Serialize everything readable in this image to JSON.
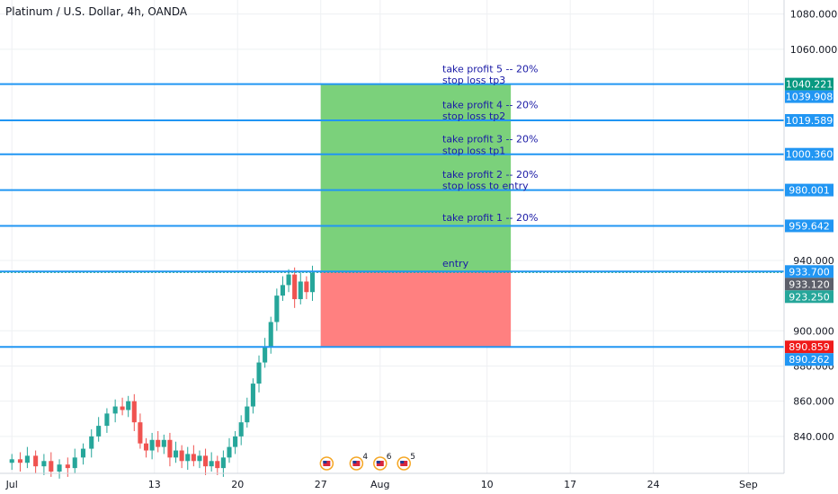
{
  "header": {
    "title": "Platinum / U.S. Dollar, 4h, OANDA"
  },
  "colors": {
    "up": "#26a69a",
    "down": "#ef5350",
    "level_line": "#2196f3",
    "profit_zone": "#7bd17b",
    "loss_zone": "#ff8080",
    "note_text": "#1a1aa6",
    "grid": "#eef0f3",
    "axis_text": "#131722"
  },
  "chart_data": {
    "type": "candlestick",
    "symbol": "Platinum / U.S. Dollar",
    "interval": "4h",
    "source": "OANDA",
    "ylim": [
      819,
      1088
    ],
    "y_ticks": [
      840,
      860,
      880,
      900,
      940,
      1060,
      1080
    ],
    "y_tick_labels": [
      "840.000",
      "860.000",
      "880.000",
      "900.000",
      "940.000",
      "1060.000",
      "1080.000"
    ],
    "x_ticks": [
      "Jul",
      "13",
      "20",
      "27",
      "Aug",
      "10",
      "17",
      "24",
      "Sep"
    ],
    "x_tick_days": [
      1,
      13,
      20,
      27,
      32,
      41,
      48,
      55,
      63
    ],
    "xlim_days": [
      0,
      66
    ],
    "close_series": [
      [
        1.0,
        827
      ],
      [
        1.7,
        825
      ],
      [
        2.3,
        829
      ],
      [
        3.0,
        823
      ],
      [
        3.7,
        826
      ],
      [
        4.3,
        820
      ],
      [
        5.0,
        824
      ],
      [
        5.7,
        822
      ],
      [
        6.3,
        828
      ],
      [
        7.0,
        833
      ],
      [
        7.7,
        840
      ],
      [
        8.3,
        846
      ],
      [
        9.0,
        853
      ],
      [
        9.7,
        857
      ],
      [
        10.3,
        855
      ],
      [
        10.8,
        860
      ],
      [
        11.3,
        848
      ],
      [
        11.8,
        836
      ],
      [
        12.3,
        832
      ],
      [
        12.8,
        838
      ],
      [
        13.3,
        834
      ],
      [
        13.8,
        838
      ],
      [
        14.3,
        828
      ],
      [
        14.8,
        832
      ],
      [
        15.3,
        826
      ],
      [
        15.8,
        830
      ],
      [
        16.3,
        826
      ],
      [
        16.8,
        829
      ],
      [
        17.3,
        823
      ],
      [
        17.8,
        826
      ],
      [
        18.3,
        822
      ],
      [
        18.8,
        828
      ],
      [
        19.3,
        834
      ],
      [
        19.8,
        840
      ],
      [
        20.3,
        848
      ],
      [
        20.8,
        857
      ],
      [
        21.3,
        870
      ],
      [
        21.8,
        882
      ],
      [
        22.3,
        891
      ],
      [
        22.8,
        905
      ],
      [
        23.3,
        920
      ],
      [
        23.8,
        926
      ],
      [
        24.3,
        932
      ],
      [
        24.8,
        918
      ],
      [
        25.3,
        928
      ],
      [
        25.8,
        922
      ],
      [
        26.3,
        933
      ]
    ],
    "levels": [
      {
        "name": "take-profit-5",
        "value": 1040.221,
        "label": "1040.221",
        "tag_color": "#089981"
      },
      {
        "name": "stop-loss-tp3",
        "value": 1039.908,
        "label": "1039.908",
        "tag_color": "#2196f3"
      },
      {
        "name": "take-profit-4",
        "value": 1019.589,
        "label": "1019.589",
        "tag_color": "#2196f3"
      },
      {
        "name": "take-profit-3",
        "value": 1000.36,
        "label": "1000.360",
        "tag_color": "#2196f3"
      },
      {
        "name": "take-profit-2",
        "value": 980.001,
        "label": "980.001",
        "tag_color": "#2196f3"
      },
      {
        "name": "take-profit-1",
        "value": 959.642,
        "label": "959.642",
        "tag_color": "#2196f3"
      },
      {
        "name": "entry",
        "value": 933.7,
        "label": "933.700",
        "tag_color": "#2196f3"
      },
      {
        "name": "current-price",
        "value": 933.12,
        "label": "933.120",
        "tag_color": "#5d606b"
      },
      {
        "name": "bid",
        "value": 923.25,
        "label": "923.250",
        "tag_color": "#26a69a"
      },
      {
        "name": "stop-loss",
        "value": 890.859,
        "label": "890.859",
        "tag_color": "#ef1a1a"
      },
      {
        "name": "stop",
        "value": 890.262,
        "label": "890.262",
        "tag_color": "#2196f3"
      }
    ],
    "position": {
      "type": "long",
      "start_day": 27,
      "end_day": 43,
      "entry": 933.7,
      "target": 1040.221,
      "stop": 890.859
    },
    "annotations": [
      {
        "text": "take profit 5 -- 20%",
        "y": 1047
      },
      {
        "text": "stop loss tp3",
        "y": 1040.5
      },
      {
        "text": "take profit 4 -- 20%",
        "y": 1026.5
      },
      {
        "text": "stop loss tp2",
        "y": 1020
      },
      {
        "text": "take profit 3 -- 20%",
        "y": 1007
      },
      {
        "text": "stop loss tp1",
        "y": 1000.5
      },
      {
        "text": "take profit 2 -- 20%",
        "y": 987
      },
      {
        "text": "stop loss to entry",
        "y": 980.5
      },
      {
        "text": "take profit 1 -- 20%",
        "y": 962.5
      },
      {
        "text": "entry",
        "y": 936.5
      }
    ],
    "event_markers": [
      {
        "day": 27.5,
        "label": ""
      },
      {
        "day": 30.0,
        "label": "4"
      },
      {
        "day": 32.0,
        "label": "6"
      },
      {
        "day": 34.0,
        "label": "5"
      }
    ],
    "grid": true
  }
}
